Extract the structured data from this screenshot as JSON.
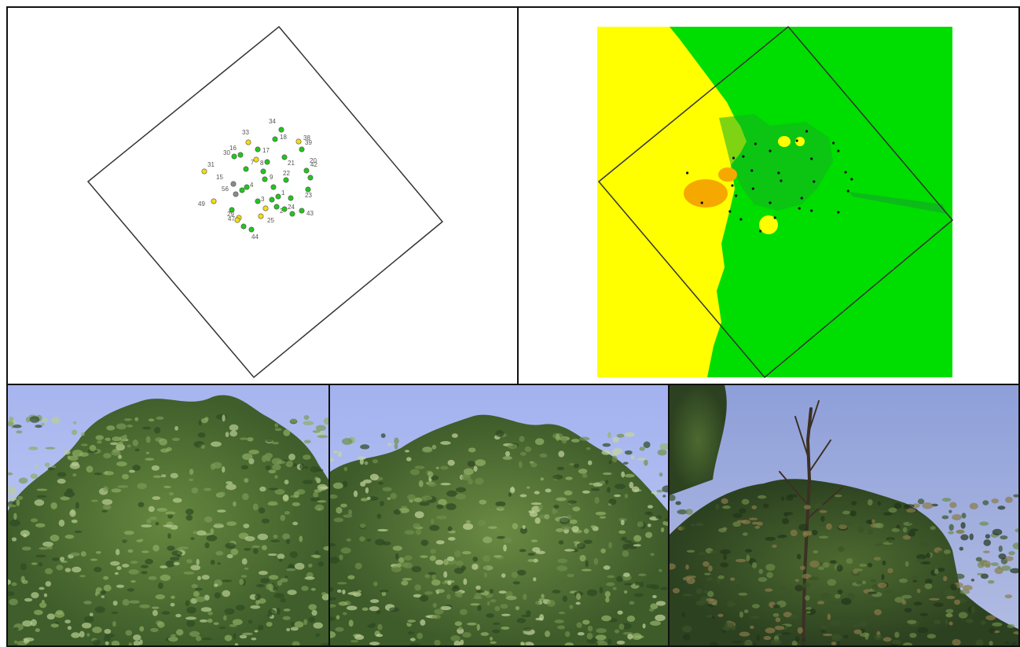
{
  "colors": {
    "healthy": "#22c51c",
    "declining": "#f2dc12",
    "dead": "#8a8a8a",
    "surface_yellow": "#ffff00",
    "surface_green": "#00dd00",
    "surface_orange": "#f5a800",
    "sky": "#a9b8ef",
    "foliage": "#4d6e34"
  },
  "map": {
    "trees": [
      {
        "id": "34",
        "status": "healthy"
      },
      {
        "id": "33",
        "status": "declining"
      },
      {
        "id": "30",
        "status": "healthy"
      },
      {
        "id": "16",
        "status": "healthy"
      },
      {
        "id": "17",
        "status": "healthy"
      },
      {
        "id": "18",
        "status": "healthy"
      },
      {
        "id": "38",
        "status": "declining"
      },
      {
        "id": "39",
        "status": "healthy"
      },
      {
        "id": "31",
        "status": "declining"
      },
      {
        "id": "7",
        "status": "healthy"
      },
      {
        "id": "8",
        "status": "healthy"
      },
      {
        "id": "21",
        "status": "healthy"
      },
      {
        "id": "20",
        "status": "healthy"
      },
      {
        "id": "42",
        "status": "healthy"
      },
      {
        "id": "15",
        "status": "dead"
      },
      {
        "id": "9",
        "status": "healthy"
      },
      {
        "id": "22",
        "status": "healthy"
      },
      {
        "id": "56",
        "status": "dead"
      },
      {
        "id": "4",
        "status": "healthy"
      },
      {
        "id": "3",
        "status": "healthy"
      },
      {
        "id": "1",
        "status": "healthy"
      },
      {
        "id": "23",
        "status": "healthy"
      },
      {
        "id": "49",
        "status": "declining"
      },
      {
        "id": "29",
        "status": "healthy"
      },
      {
        "id": "2",
        "status": "healthy"
      },
      {
        "id": "24",
        "status": "healthy"
      },
      {
        "id": "43",
        "status": "healthy"
      },
      {
        "id": "47",
        "status": "declining"
      },
      {
        "id": "25",
        "status": "declining"
      },
      {
        "id": "44",
        "status": "healthy"
      }
    ]
  }
}
